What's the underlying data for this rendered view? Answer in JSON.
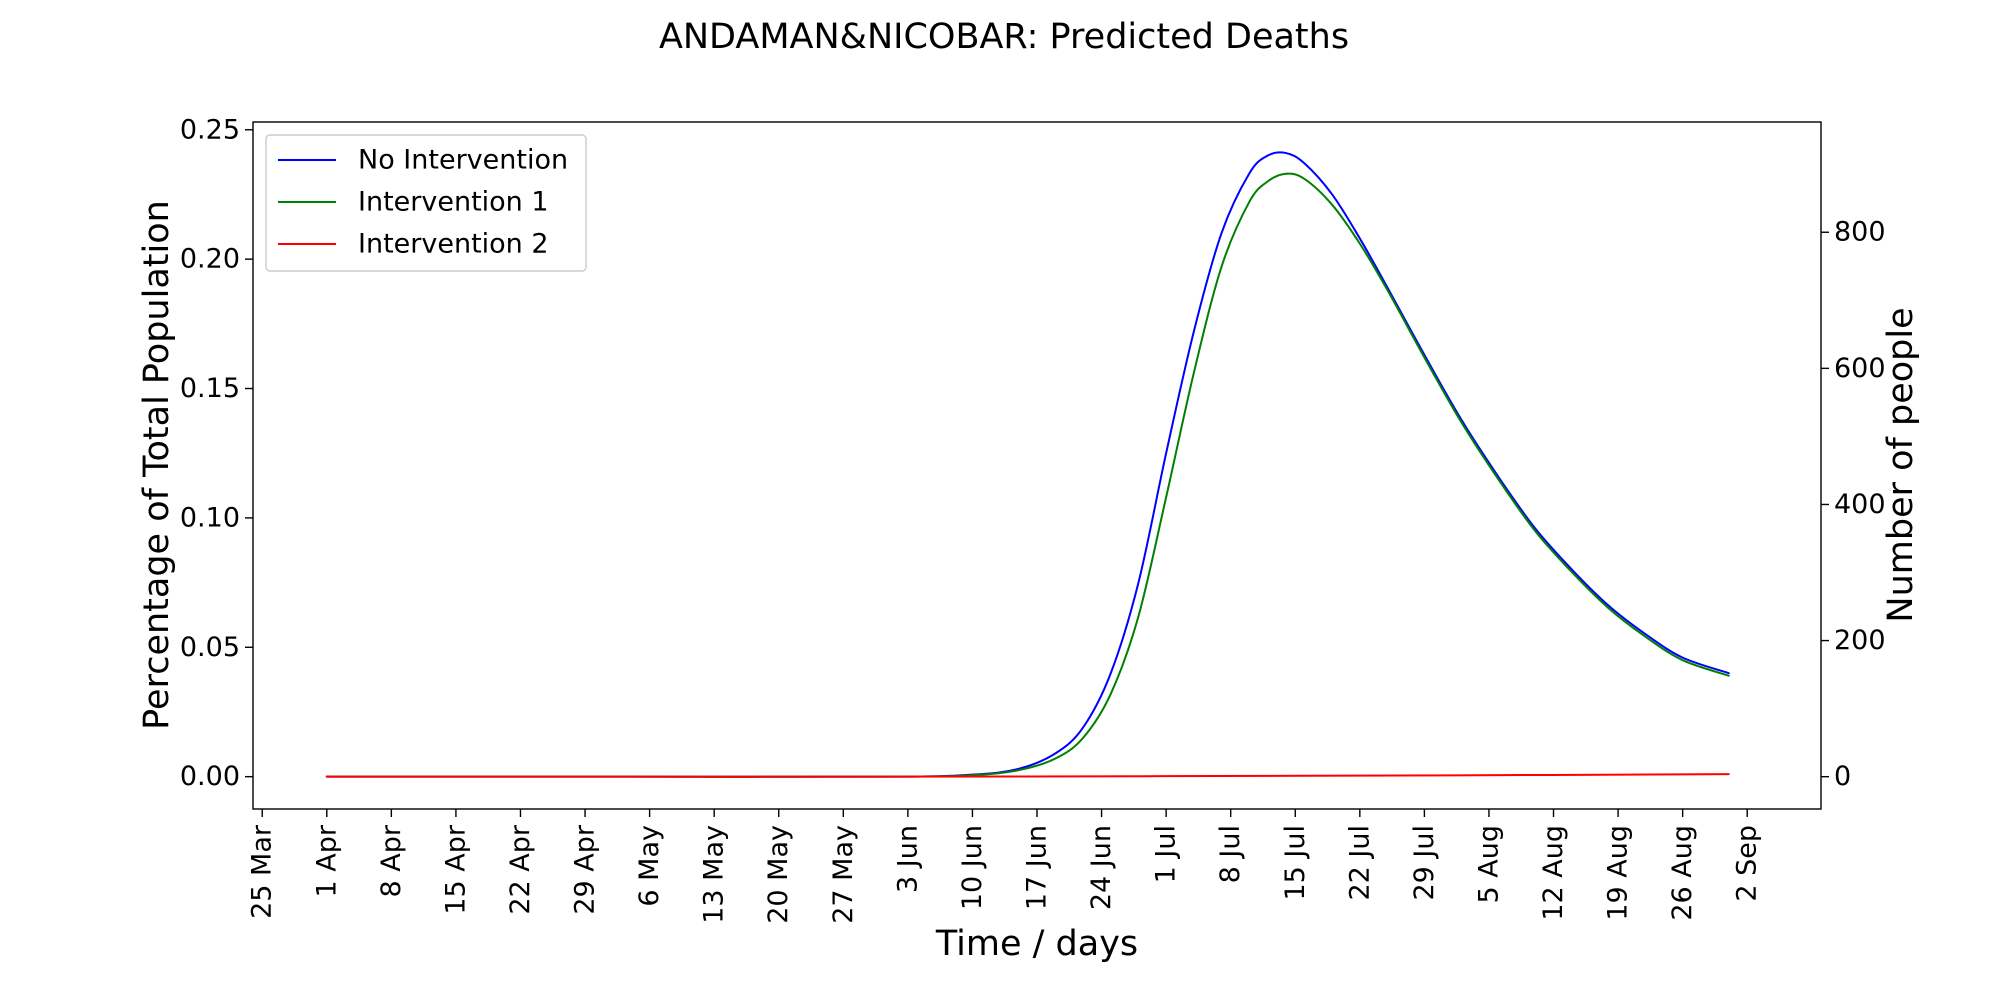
{
  "chart_data": {
    "type": "line",
    "title": "ANDAMAN&NICOBAR: Predicted Deaths",
    "xlabel": "Time / days",
    "ylabel": "Percentage of Total Population",
    "y2label": "Number of people",
    "x_unit": "date (2020)",
    "xlim": [
      "2020-03-24",
      "2020-09-10"
    ],
    "ylim": [
      -0.0125,
      0.253
    ],
    "y2lim": [
      -47.5,
      962
    ],
    "grid": false,
    "legend_position": "upper-left",
    "x_ticks": [
      "2020-03-25",
      "2020-04-01",
      "2020-04-08",
      "2020-04-15",
      "2020-04-22",
      "2020-04-29",
      "2020-05-06",
      "2020-05-13",
      "2020-05-20",
      "2020-05-27",
      "2020-06-03",
      "2020-06-10",
      "2020-06-17",
      "2020-06-24",
      "2020-07-01",
      "2020-07-08",
      "2020-07-15",
      "2020-07-22",
      "2020-07-29",
      "2020-08-05",
      "2020-08-12",
      "2020-08-19",
      "2020-08-26",
      "2020-09-02"
    ],
    "x_tick_labels": [
      "25 Mar",
      "1 Apr",
      "8 Apr",
      "15 Apr",
      "22 Apr",
      "29 Apr",
      "6 May",
      "13 May",
      "20 May",
      "27 May",
      "3 Jun",
      "10 Jun",
      "17 Jun",
      "24 Jun",
      "1 Jul",
      "8 Jul",
      "15 Jul",
      "22 Jul",
      "29 Jul",
      "5 Aug",
      "12 Aug",
      "19 Aug",
      "26 Aug",
      "2 Sep"
    ],
    "y_ticks": [
      0.0,
      0.05,
      0.1,
      0.15,
      0.2,
      0.25
    ],
    "y_tick_labels": [
      "0.00",
      "0.05",
      "0.10",
      "0.15",
      "0.20",
      "0.25"
    ],
    "y2_ticks": [
      0,
      200,
      400,
      600,
      800
    ],
    "y2_tick_labels": [
      "0",
      "200",
      "400",
      "600",
      "800"
    ],
    "series": [
      {
        "name": "No Intervention",
        "color": "#0000ff",
        "x": [
          "2020-04-01",
          "2020-05-01",
          "2020-06-01",
          "2020-06-10",
          "2020-06-15",
          "2020-06-19",
          "2020-06-22",
          "2020-06-25",
          "2020-06-28",
          "2020-07-01",
          "2020-07-04",
          "2020-07-07",
          "2020-07-10",
          "2020-07-12",
          "2020-07-14",
          "2020-07-16",
          "2020-07-19",
          "2020-07-22",
          "2020-07-25",
          "2020-07-29",
          "2020-08-02",
          "2020-08-06",
          "2020-08-10",
          "2020-08-14",
          "2020-08-18",
          "2020-08-22",
          "2020-08-26",
          "2020-08-31"
        ],
        "y": [
          0.0,
          0.0,
          0.0,
          0.0008,
          0.003,
          0.009,
          0.019,
          0.04,
          0.075,
          0.125,
          0.172,
          0.21,
          0.233,
          0.24,
          0.241,
          0.237,
          0.225,
          0.208,
          0.189,
          0.163,
          0.138,
          0.116,
          0.096,
          0.08,
          0.066,
          0.055,
          0.046,
          0.04
        ]
      },
      {
        "name": "Intervention 1",
        "color": "#008000",
        "x": [
          "2020-04-01",
          "2020-05-01",
          "2020-06-01",
          "2020-06-10",
          "2020-06-15",
          "2020-06-19",
          "2020-06-22",
          "2020-06-25",
          "2020-06-28",
          "2020-07-01",
          "2020-07-04",
          "2020-07-07",
          "2020-07-10",
          "2020-07-12",
          "2020-07-14",
          "2020-07-16",
          "2020-07-19",
          "2020-07-22",
          "2020-07-25",
          "2020-07-29",
          "2020-08-02",
          "2020-08-06",
          "2020-08-10",
          "2020-08-14",
          "2020-08-18",
          "2020-08-22",
          "2020-08-26",
          "2020-08-31"
        ],
        "y": [
          0.0,
          0.0,
          0.0,
          0.0006,
          0.0025,
          0.007,
          0.015,
          0.032,
          0.062,
          0.108,
          0.156,
          0.197,
          0.222,
          0.23,
          0.233,
          0.231,
          0.221,
          0.206,
          0.188,
          0.162,
          0.137,
          0.115,
          0.095,
          0.079,
          0.065,
          0.054,
          0.045,
          0.039
        ]
      },
      {
        "name": "Intervention 2",
        "color": "#ff0000",
        "x": [
          "2020-04-01",
          "2020-05-01",
          "2020-06-01",
          "2020-07-01",
          "2020-08-01",
          "2020-08-31"
        ],
        "y": [
          0.0,
          0.0,
          0.0,
          0.0002,
          0.0005,
          0.001
        ]
      }
    ]
  }
}
